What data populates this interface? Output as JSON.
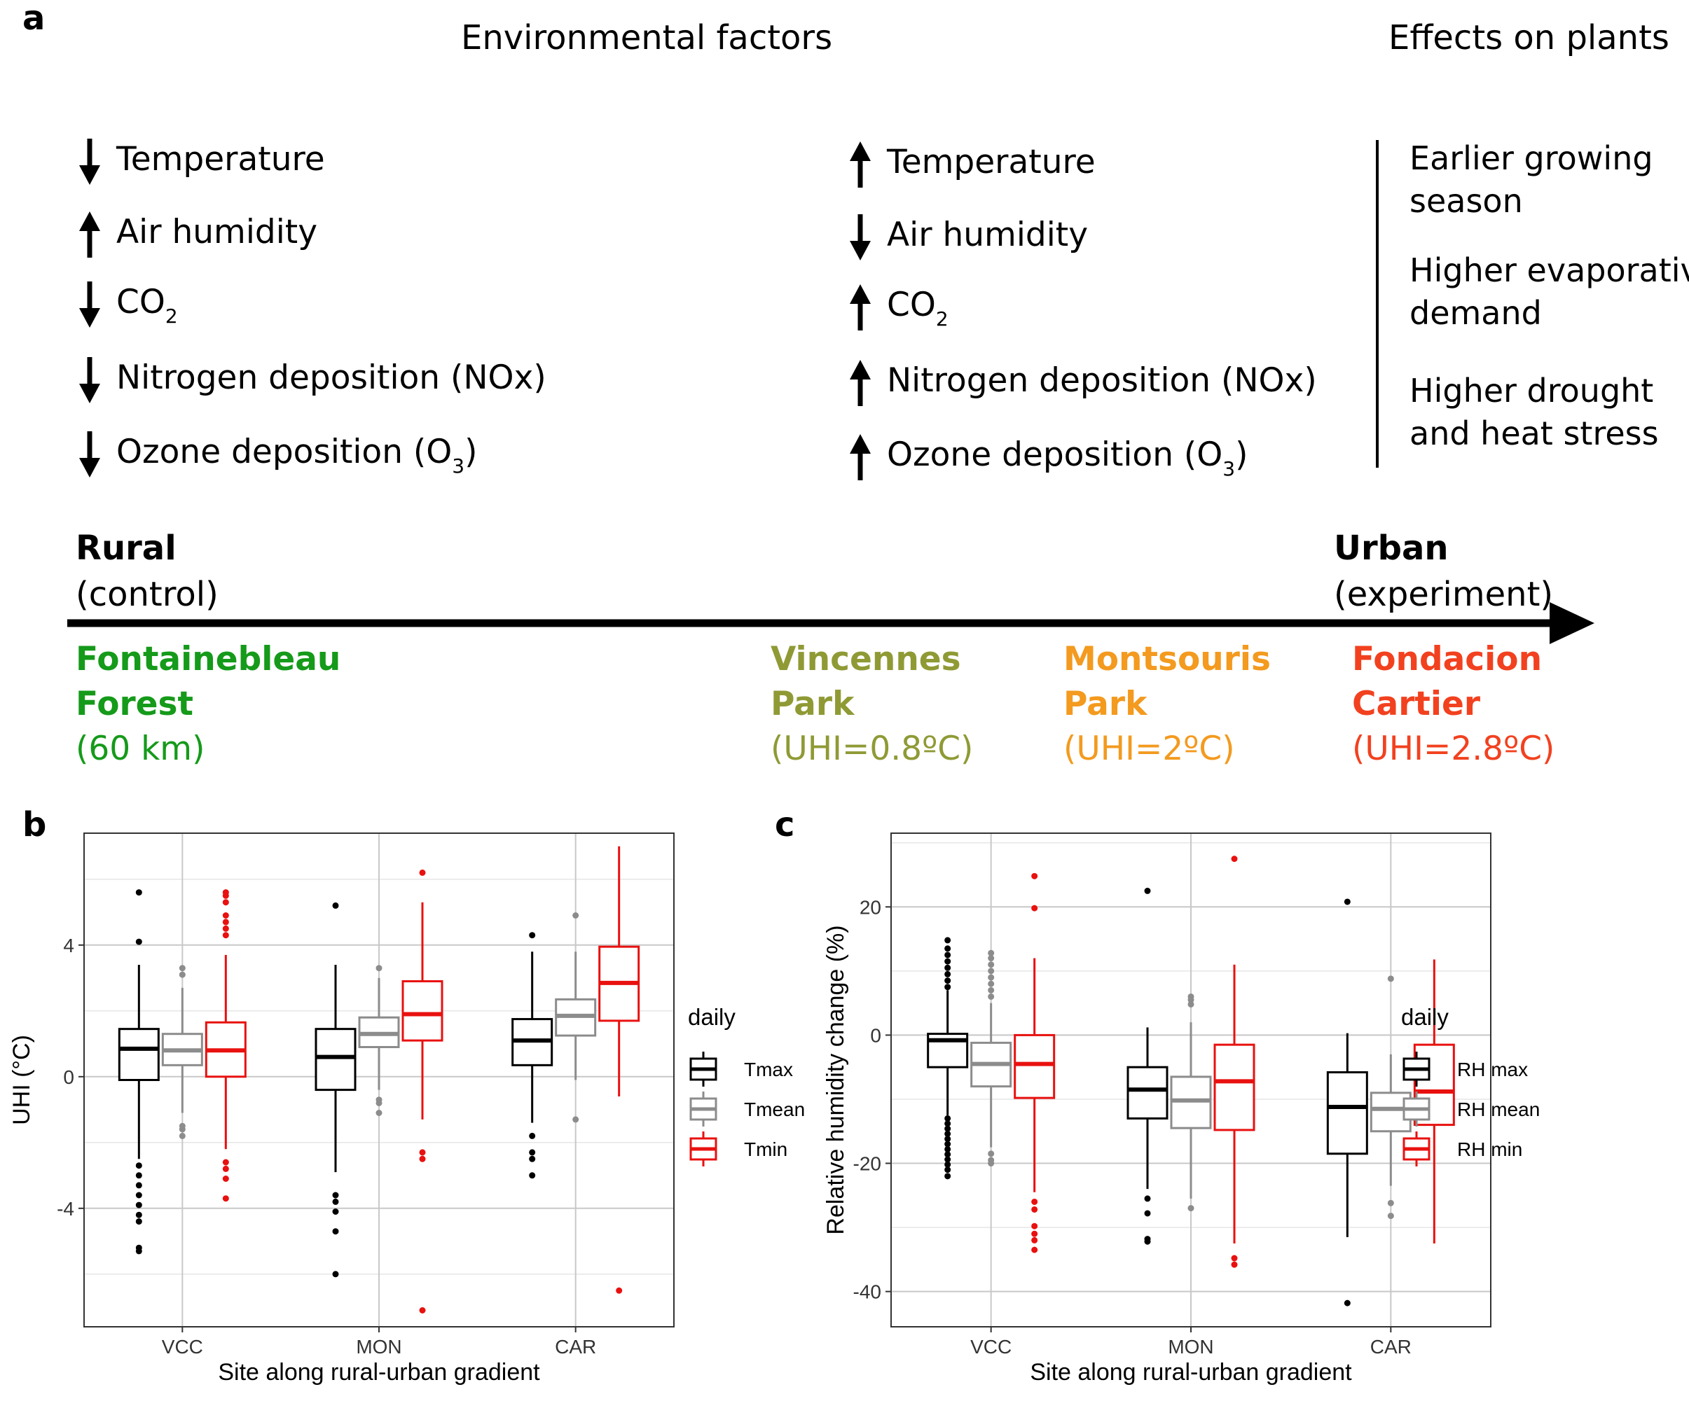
{
  "panel_a": {
    "letter": "a",
    "header_env": "Environmental factors",
    "header_eff": "Effects on plants",
    "rural_factors": [
      {
        "dir": "down",
        "label": "Temperature",
        "sub": ""
      },
      {
        "dir": "up",
        "label": "Air humidity",
        "sub": ""
      },
      {
        "dir": "down",
        "label": "CO",
        "sub": "2",
        "tail": ""
      },
      {
        "dir": "down",
        "label": "Nitrogen deposition (NOx)",
        "sub": ""
      },
      {
        "dir": "down",
        "label": "Ozone deposition (O",
        "sub": "3",
        "tail": ")"
      }
    ],
    "urban_factors": [
      {
        "dir": "up",
        "label": "Temperature",
        "sub": ""
      },
      {
        "dir": "down",
        "label": "Air humidity",
        "sub": ""
      },
      {
        "dir": "up",
        "label": "CO",
        "sub": "2",
        "tail": ""
      },
      {
        "dir": "up",
        "label": "Nitrogen deposition (NOx)",
        "sub": ""
      },
      {
        "dir": "up",
        "label": "Ozone deposition (O",
        "sub": "3",
        "tail": ")"
      }
    ],
    "effects": [
      [
        "Earlier growing",
        "season"
      ],
      [
        "Higher evaporative",
        "demand"
      ],
      [
        "Higher drought",
        "and heat stress"
      ]
    ],
    "rural": {
      "title": "Rural",
      "sub": "(control)"
    },
    "urban": {
      "title": "Urban",
      "sub": "(experiment)"
    },
    "sites": [
      {
        "line1": "Fontainebleau",
        "line2": "Forest",
        "line3": "(60 km)",
        "color": "#159a1a"
      },
      {
        "line1": "Vincennes",
        "line2": "Park",
        "line3": "(UHI=0.8ºC)",
        "color": "#8f9a35"
      },
      {
        "line1": "Montsouris",
        "line2": "Park",
        "line3": "(UHI=2ºC)",
        "color": "#f39a1f"
      },
      {
        "line1": "Fondacion",
        "line2": "Cartier",
        "line3": "(UHI=2.8ºC)",
        "color": "#f2411f"
      }
    ]
  },
  "chart_data": [
    {
      "panel": "b",
      "type": "box",
      "xlabel": "Site along rural-urban gradient",
      "ylabel": "UHI (°C)",
      "categories": [
        "VCC",
        "MON",
        "CAR"
      ],
      "ylim": [
        -7.6,
        7.4
      ],
      "yticks": [
        -4,
        0,
        4
      ],
      "legend_title": "daily",
      "legend_position": "right",
      "grid": true,
      "series": [
        {
          "name": "Tmax",
          "color": "#000000",
          "boxes": [
            {
              "q1": -0.1,
              "median": 0.85,
              "q3": 1.45,
              "lo": -2.5,
              "hi": 3.4,
              "outliers": [
                5.6,
                4.1,
                -2.7,
                -3.0,
                -3.3,
                -3.6,
                -3.9,
                -4.2,
                -4.4,
                -5.2,
                -5.3
              ]
            },
            {
              "q1": -0.4,
              "median": 0.6,
              "q3": 1.45,
              "lo": -2.9,
              "hi": 3.4,
              "outliers": [
                5.2,
                -3.6,
                -3.8,
                -4.1,
                -4.7,
                -6.0
              ]
            },
            {
              "q1": 0.35,
              "median": 1.1,
              "q3": 1.75,
              "lo": -1.4,
              "hi": 3.8,
              "outliers": [
                4.3,
                -1.8,
                -2.3,
                -2.5,
                -3.0
              ]
            }
          ]
        },
        {
          "name": "Tmean",
          "color": "#8c8c8c",
          "boxes": [
            {
              "q1": 0.35,
              "median": 0.8,
              "q3": 1.3,
              "lo": -1.1,
              "hi": 2.7,
              "outliers": [
                3.3,
                3.1,
                -1.5,
                -1.6,
                -1.8
              ]
            },
            {
              "q1": 0.9,
              "median": 1.3,
              "q3": 1.8,
              "lo": -0.4,
              "hi": 3.0,
              "outliers": [
                3.3,
                -0.7,
                -0.8,
                -1.1
              ]
            },
            {
              "q1": 1.25,
              "median": 1.85,
              "q3": 2.35,
              "lo": -0.1,
              "hi": 3.8,
              "outliers": [
                4.9,
                -1.3
              ]
            }
          ]
        },
        {
          "name": "Tmin",
          "color": "#e8110f",
          "boxes": [
            {
              "q1": 0.0,
              "median": 0.8,
              "q3": 1.65,
              "lo": -2.2,
              "hi": 3.7,
              "outliers": [
                5.6,
                5.5,
                5.3,
                4.9,
                4.7,
                4.5,
                4.3,
                -2.6,
                -2.8,
                -3.1,
                -3.7
              ]
            },
            {
              "q1": 1.1,
              "median": 1.9,
              "q3": 2.9,
              "lo": -1.3,
              "hi": 5.3,
              "outliers": [
                6.2,
                -2.3,
                -2.5,
                -7.1
              ]
            },
            {
              "q1": 1.7,
              "median": 2.85,
              "q3": 3.95,
              "lo": -0.6,
              "hi": 7.0,
              "outliers": [
                -6.5
              ]
            }
          ]
        }
      ]
    },
    {
      "panel": "c",
      "type": "box",
      "xlabel": "Site along rural-urban gradient",
      "ylabel": "Relative humidity change (%)",
      "categories": [
        "VCC",
        "MON",
        "CAR"
      ],
      "ylim": [
        -45.5,
        31.5
      ],
      "yticks": [
        -40,
        -20,
        0,
        20
      ],
      "legend_title": "daily",
      "legend_position": "right",
      "grid": true,
      "series": [
        {
          "name": "RH max",
          "color": "#000000",
          "boxes": [
            {
              "q1": -5.0,
              "median": -0.8,
              "q3": 0.2,
              "lo": -12.5,
              "hi": 7.0,
              "outliers": [
                14.8,
                13.5,
                12.5,
                11.5,
                10.5,
                9.5,
                8.5,
                7.5,
                -13.0,
                -13.8,
                -14.6,
                -15.4,
                -16.2,
                -17.0,
                -17.8,
                -18.6,
                -19.4,
                -20.2,
                -21.0,
                -22.0
              ]
            },
            {
              "q1": -13.0,
              "median": -8.5,
              "q3": -5.0,
              "lo": -24.0,
              "hi": 1.2,
              "outliers": [
                22.5,
                -25.5,
                -27.8,
                -31.8,
                -32.2
              ]
            },
            {
              "q1": -18.5,
              "median": -11.2,
              "q3": -5.8,
              "lo": -31.5,
              "hi": 0.3,
              "outliers": [
                20.8,
                -41.8
              ]
            }
          ]
        },
        {
          "name": "RH mean",
          "color": "#8c8c8c",
          "boxes": [
            {
              "q1": -8.0,
              "median": -4.5,
              "q3": -1.2,
              "lo": -17.5,
              "hi": 5.0,
              "outliers": [
                12.8,
                12.0,
                11.0,
                10.0,
                9.0,
                8.0,
                7.0,
                6.0,
                -18.5,
                -19.5,
                -20.0
              ]
            },
            {
              "q1": -14.5,
              "median": -10.2,
              "q3": -6.5,
              "lo": -25.5,
              "hi": 2.0,
              "outliers": [
                6.0,
                5.5,
                4.8,
                -27.0
              ]
            },
            {
              "q1": -15.0,
              "median": -11.5,
              "q3": -9.0,
              "lo": -23.5,
              "hi": -3.0,
              "outliers": [
                8.8,
                -26.2,
                -28.2
              ]
            }
          ]
        },
        {
          "name": "RH min",
          "color": "#e8110f",
          "boxes": [
            {
              "q1": -9.8,
              "median": -4.5,
              "q3": 0.0,
              "lo": -24.5,
              "hi": 12.0,
              "outliers": [
                24.8,
                19.8,
                -26.0,
                -27.2,
                -29.8,
                -31.0,
                -32.0,
                -33.5
              ]
            },
            {
              "q1": -14.8,
              "median": -7.2,
              "q3": -1.5,
              "lo": -32.5,
              "hi": 11.0,
              "outliers": [
                27.5,
                -34.8,
                -35.8
              ]
            },
            {
              "q1": -14.0,
              "median": -8.8,
              "q3": -1.5,
              "lo": -32.5,
              "hi": 11.8,
              "outliers": []
            }
          ]
        }
      ]
    }
  ]
}
